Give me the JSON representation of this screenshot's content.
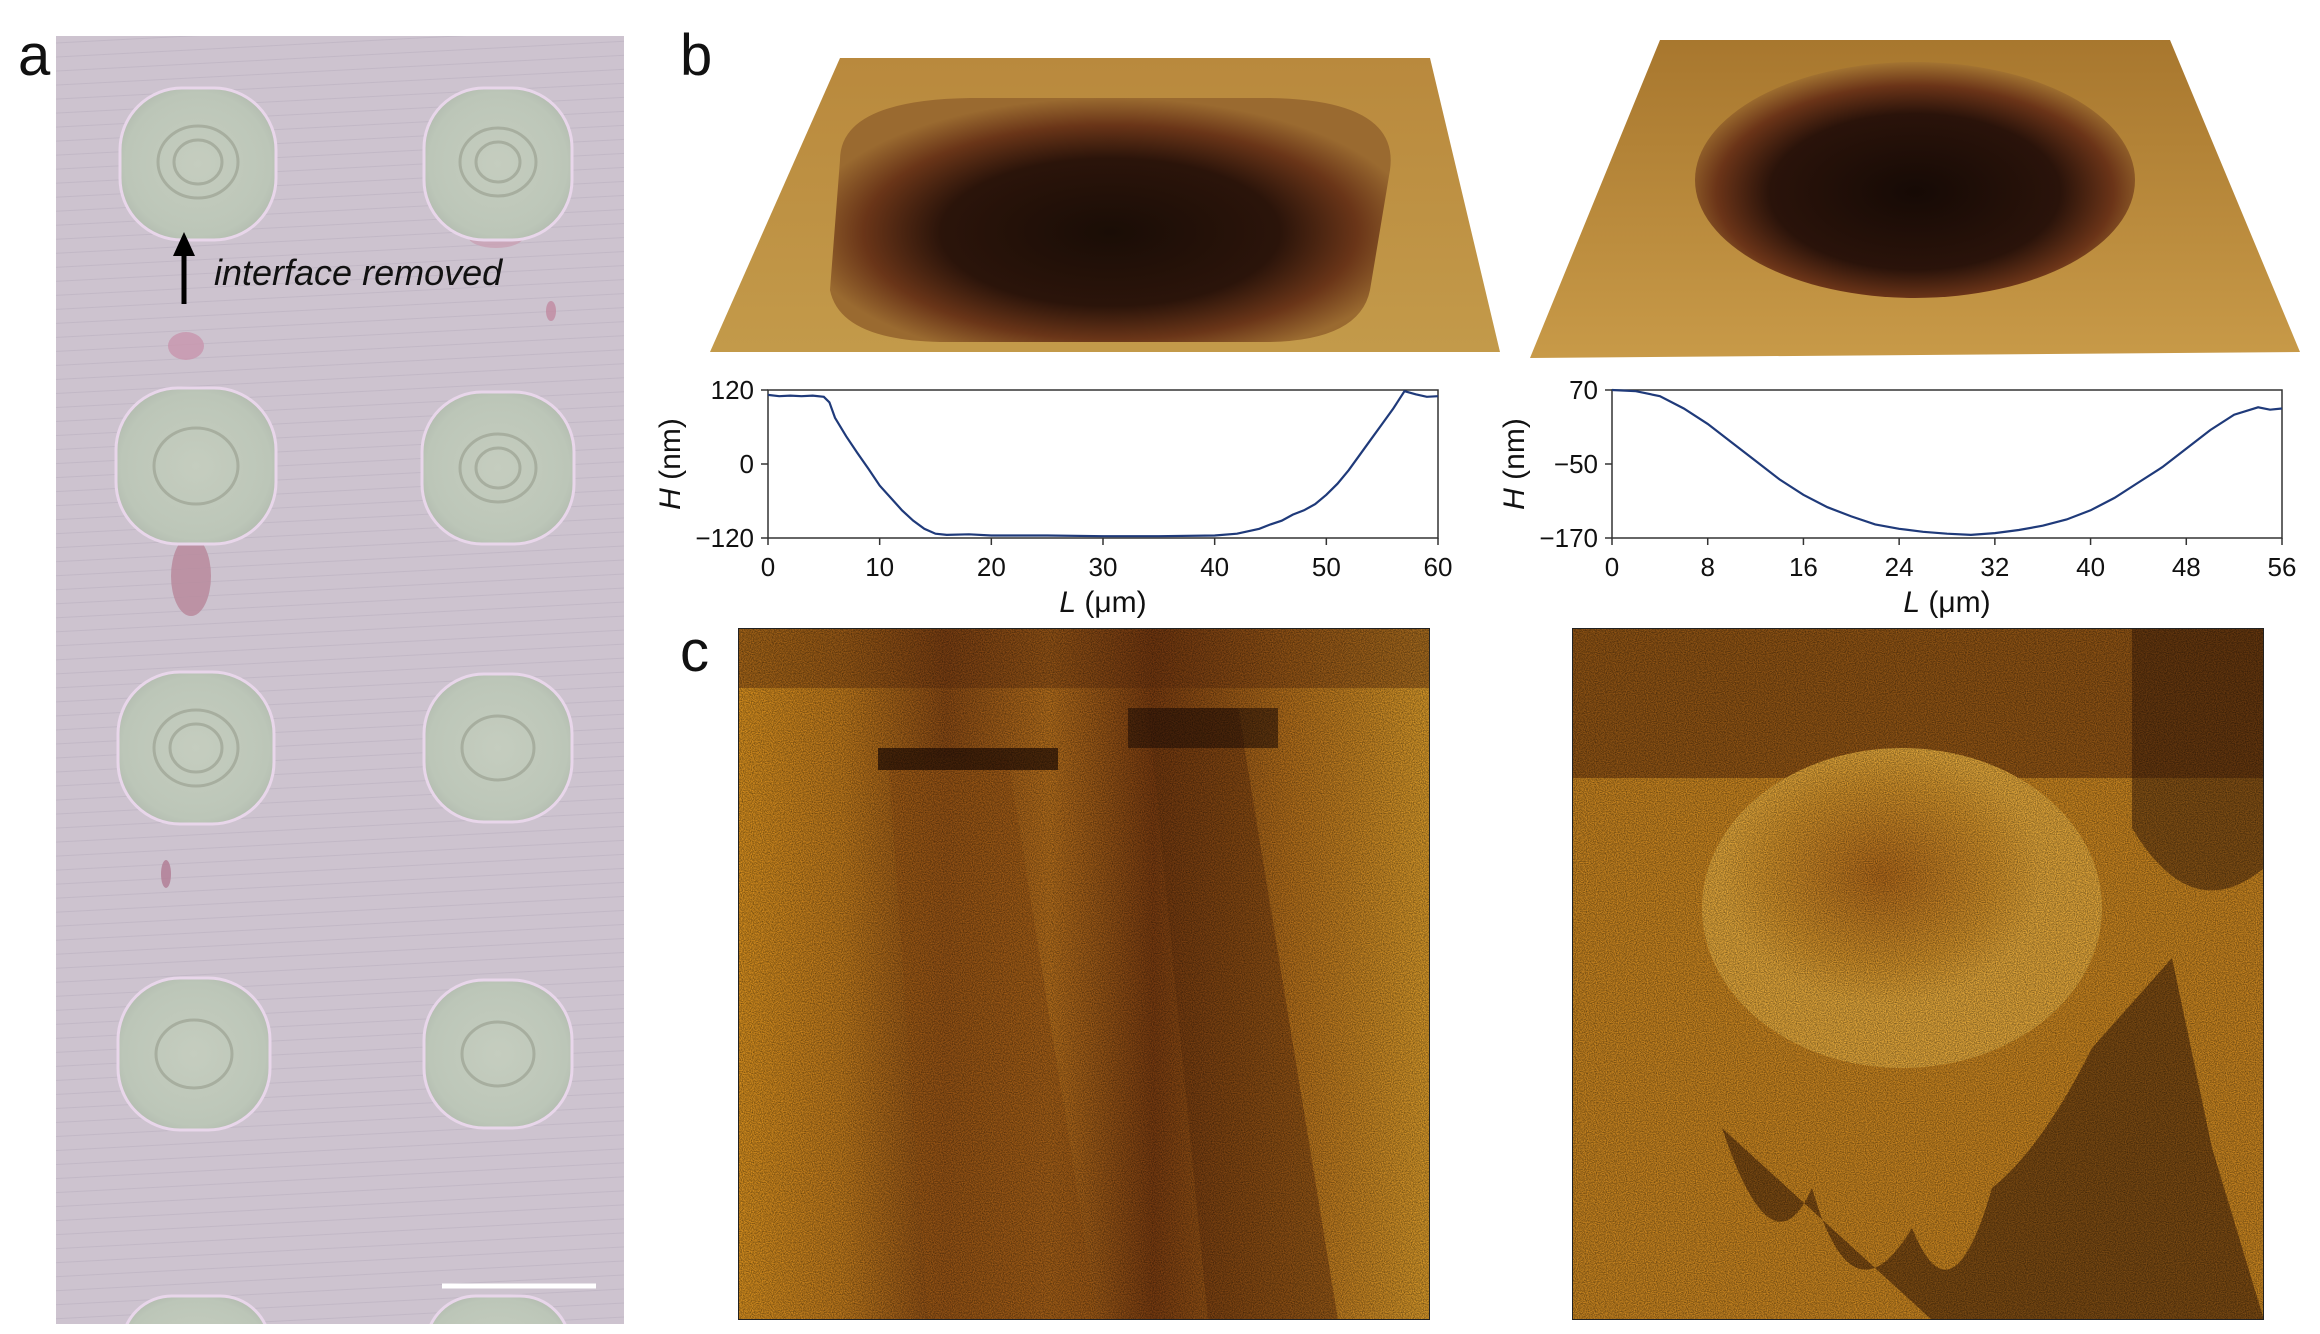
{
  "panels": {
    "a": {
      "letter": "a",
      "annotation": "interface removed"
    },
    "b": {
      "letter": "b"
    },
    "c": {
      "letter": "c"
    }
  },
  "chart_data": [
    {
      "type": "line",
      "title": "",
      "xlabel_var": "L",
      "xlabel_unit": " (μm)",
      "ylabel_var": "H",
      "ylabel_unit": " (nm)",
      "xlim": [
        0,
        60
      ],
      "ylim": [
        -120,
        120
      ],
      "xticks": [
        0,
        10,
        20,
        30,
        40,
        50,
        60
      ],
      "yticks": [
        -120,
        0,
        120
      ],
      "xtick_labels": [
        "0",
        "10",
        "20",
        "30",
        "40",
        "50",
        "60"
      ],
      "ytick_labels": [
        "−120",
        "0",
        "120"
      ],
      "color": "#1f3a7a",
      "series": [
        {
          "x": [
            0,
            1,
            2,
            3,
            4,
            5,
            5.5,
            6,
            7,
            8,
            9,
            10,
            11,
            12,
            13,
            14,
            15,
            16,
            18,
            20,
            25,
            30,
            35,
            40,
            42,
            44,
            45,
            46,
            47,
            48,
            49,
            50,
            51,
            52,
            53,
            54,
            55,
            56,
            57,
            58,
            59,
            60
          ],
          "y": [
            112,
            110,
            111,
            110,
            111,
            109,
            100,
            75,
            45,
            18,
            -8,
            -35,
            -55,
            -75,
            -92,
            -105,
            -113,
            -115,
            -114,
            -116,
            -116,
            -117,
            -117,
            -116,
            -113,
            -105,
            -98,
            -92,
            -82,
            -75,
            -65,
            -50,
            -32,
            -10,
            15,
            40,
            65,
            90,
            118,
            113,
            109,
            110
          ]
        }
      ]
    },
    {
      "type": "line",
      "title": "",
      "xlabel_var": "L",
      "xlabel_unit": " (μm)",
      "ylabel_var": "H",
      "ylabel_unit": " (nm)",
      "xlim": [
        0,
        56
      ],
      "ylim": [
        -170,
        70
      ],
      "xticks": [
        0,
        8,
        16,
        24,
        32,
        40,
        48,
        56
      ],
      "yticks": [
        -170,
        -50,
        70
      ],
      "xtick_labels": [
        "0",
        "8",
        "16",
        "24",
        "32",
        "40",
        "48",
        "56"
      ],
      "ytick_labels": [
        "−170",
        "−50",
        "70"
      ],
      "color": "#1f3a7a",
      "series": [
        {
          "x": [
            0,
            2,
            4,
            6,
            8,
            10,
            12,
            14,
            16,
            18,
            20,
            22,
            24,
            26,
            28,
            30,
            32,
            34,
            36,
            38,
            40,
            42,
            44,
            46,
            48,
            50,
            52,
            54,
            55,
            56
          ],
          "y": [
            70,
            68,
            60,
            40,
            15,
            -15,
            -45,
            -75,
            -100,
            -120,
            -135,
            -148,
            -155,
            -160,
            -163,
            -165,
            -162,
            -157,
            -150,
            -140,
            -125,
            -105,
            -80,
            -55,
            -25,
            5,
            30,
            42,
            38,
            40
          ]
        }
      ]
    }
  ]
}
